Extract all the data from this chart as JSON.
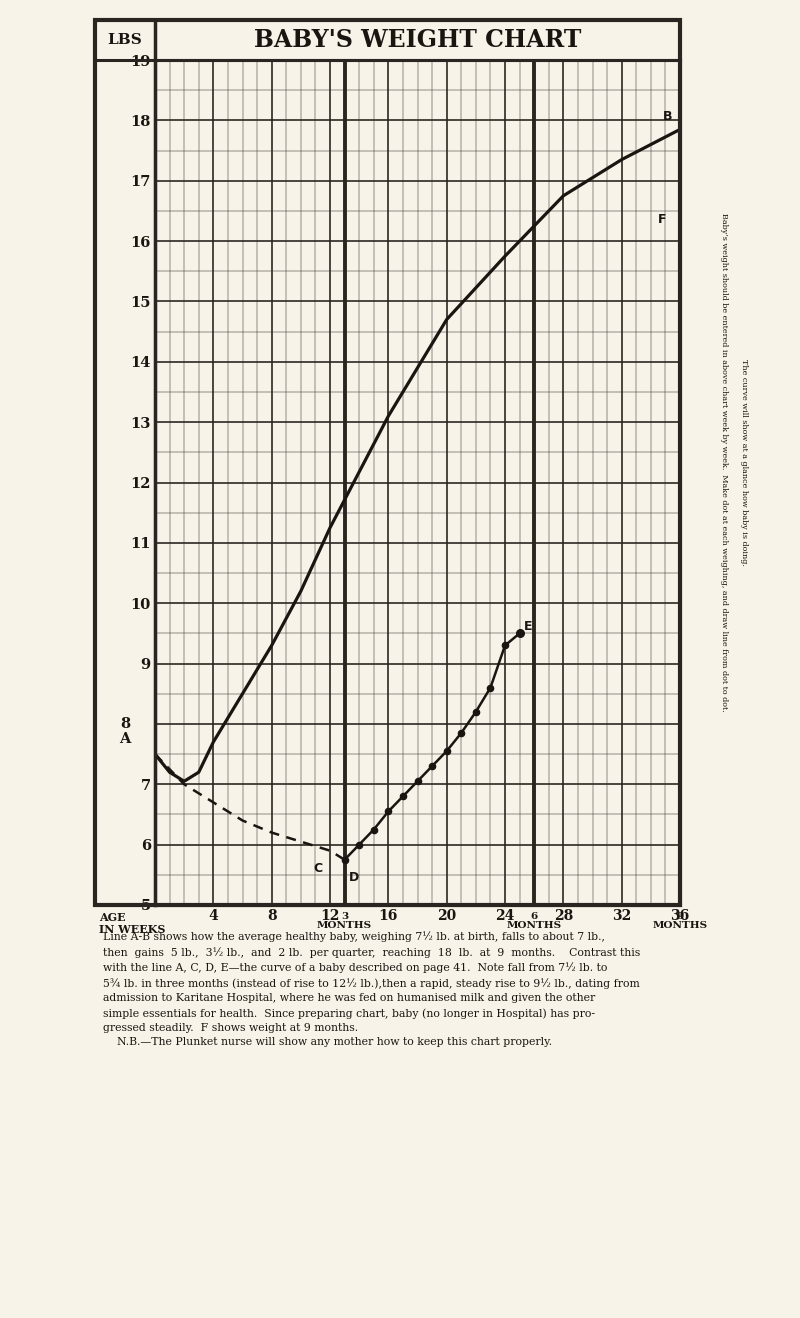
{
  "title": "BABY'S WEIGHT CHART",
  "bg_color": "#f7f3e8",
  "grid_color": "#2a2520",
  "line_color": "#1a1510",
  "ylim": [
    5,
    19
  ],
  "yticks": [
    5,
    6,
    7,
    8,
    9,
    10,
    11,
    12,
    13,
    14,
    15,
    16,
    17,
    18,
    19
  ],
  "xticks": [
    0,
    4,
    8,
    12,
    16,
    20,
    24,
    28,
    32,
    36
  ],
  "xlim": [
    0,
    36
  ],
  "line_AB_x": [
    0,
    1,
    2,
    3,
    4,
    6,
    8,
    10,
    12,
    16,
    20,
    24,
    28,
    32,
    36
  ],
  "line_AB_y": [
    7.5,
    7.2,
    7.05,
    7.2,
    7.7,
    8.5,
    9.3,
    10.2,
    11.25,
    13.1,
    14.7,
    15.75,
    16.75,
    17.35,
    17.85
  ],
  "line_ACDE_dashed_x": [
    0,
    2,
    4,
    6,
    8,
    10,
    12,
    13
  ],
  "line_ACDE_dashed_y": [
    7.5,
    7.0,
    6.7,
    6.4,
    6.2,
    6.05,
    5.9,
    5.75
  ],
  "line_ACDE_solid_x": [
    13,
    14,
    15,
    16,
    17,
    18,
    19,
    20,
    21,
    22,
    23,
    24,
    25
  ],
  "line_ACDE_solid_y": [
    5.75,
    6.0,
    6.25,
    6.55,
    6.8,
    7.05,
    7.3,
    7.55,
    7.85,
    8.2,
    8.6,
    9.3,
    9.5
  ],
  "point_A_y": 7.5,
  "point_B_x": 36,
  "point_B_y": 17.85,
  "point_C_x": 12,
  "point_C_y": 5.9,
  "point_D_x": 13,
  "point_D_y": 5.75,
  "point_E_x": 25,
  "point_E_y": 9.5,
  "point_F_x": 36,
  "point_F_y": 16.2,
  "text_block_lines": [
    "Line A-B shows how the average healthy baby, weighing 7½ lb. at birth, falls to about 7 lb.,",
    "then  gains  5 lb.,  3½ lb.,  and  2 lb.  per quarter,  reaching  18  lb.  at  9  months.    Contrast this",
    "with the line A, C, D, E—the curve of a baby described on page 41.  Note fall from 7½ lb. to",
    "5¾ lb. in three months (instead of rise to 12½ lb.),then a rapid, steady rise to 9½ lb., dating from",
    "admission to Karitane Hospital, where he was fed on humanised milk and given the other",
    "simple essentials for health.  Since preparing chart, baby (no longer in Hospital) has pro-",
    "gressed steadily.  F shows weight at 9 months.",
    "    N.B.—The Plunket nurse will show any mother how to keep this chart properly."
  ],
  "rotated_text_1": "Baby’s weight should be entered in above chart week by week.  Make dot at each weighing, and draw line from dot to dot.",
  "rotated_text_2": "The curve will show at a glance how baby is doing."
}
